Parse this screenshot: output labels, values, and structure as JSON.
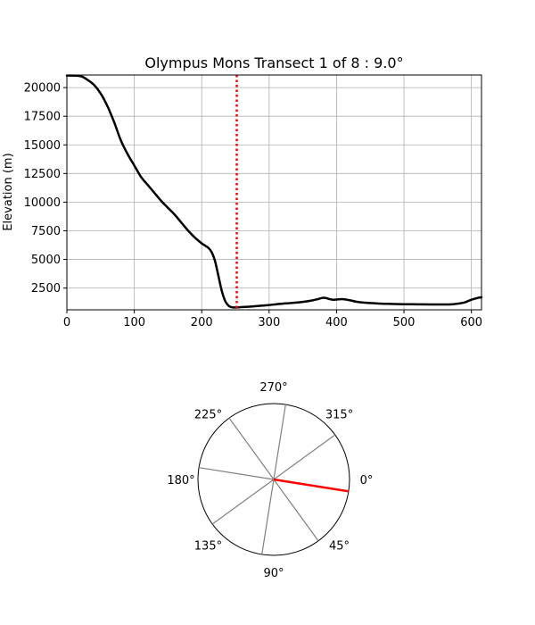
{
  "chart_data": [
    {
      "type": "line",
      "title": "Olympus Mons Transect 1 of 8 : 9.0°",
      "xlabel": "",
      "ylabel": "Elevation (m)",
      "xlim": [
        0,
        615
      ],
      "ylim": [
        600,
        21100
      ],
      "xticks": [
        0,
        100,
        200,
        300,
        400,
        500,
        600
      ],
      "yticks": [
        2500,
        5000,
        7500,
        10000,
        12500,
        15000,
        17500,
        20000
      ],
      "grid": true,
      "series": [
        {
          "color": "#000000",
          "x": [
            0,
            20,
            30,
            40,
            50,
            60,
            70,
            80,
            90,
            100,
            110,
            120,
            130,
            140,
            150,
            160,
            170,
            180,
            190,
            200,
            210,
            215,
            220,
            225,
            230,
            235,
            240,
            245,
            250,
            255,
            260,
            270,
            280,
            290,
            300,
            310,
            320,
            330,
            340,
            350,
            360,
            370,
            375,
            380,
            385,
            390,
            395,
            400,
            410,
            420,
            430,
            440,
            460,
            480,
            500,
            520,
            540,
            560,
            570,
            580,
            590,
            600,
            610,
            615
          ],
          "y": [
            21050,
            21000,
            20700,
            20250,
            19500,
            18400,
            17000,
            15400,
            14200,
            13200,
            12200,
            11500,
            10800,
            10100,
            9500,
            8900,
            8200,
            7500,
            6900,
            6400,
            6000,
            5600,
            4800,
            3500,
            2200,
            1350,
            950,
            820,
            800,
            820,
            840,
            870,
            920,
            970,
            1020,
            1080,
            1140,
            1180,
            1230,
            1290,
            1380,
            1500,
            1580,
            1650,
            1620,
            1530,
            1480,
            1500,
            1530,
            1430,
            1300,
            1230,
            1160,
            1120,
            1090,
            1080,
            1070,
            1070,
            1080,
            1140,
            1250,
            1480,
            1650,
            1700
          ]
        }
      ],
      "marker_line": {
        "x": 252,
        "color": "#ff0000",
        "style": "dotted"
      }
    },
    {
      "type": "polar",
      "angle_labels": [
        "0°",
        "45°",
        "90°",
        "135°",
        "180°",
        "225°",
        "270°",
        "315°"
      ],
      "angle_label_degrees": [
        0,
        45,
        90,
        135,
        180,
        225,
        270,
        315
      ],
      "transect_angles": [
        9.0,
        54.0,
        99.0,
        144.0,
        189.0,
        234.0,
        279.0,
        324.0
      ],
      "highlight_angle": 9.0,
      "highlight_color": "#ff0000",
      "line_color": "#808080"
    }
  ]
}
